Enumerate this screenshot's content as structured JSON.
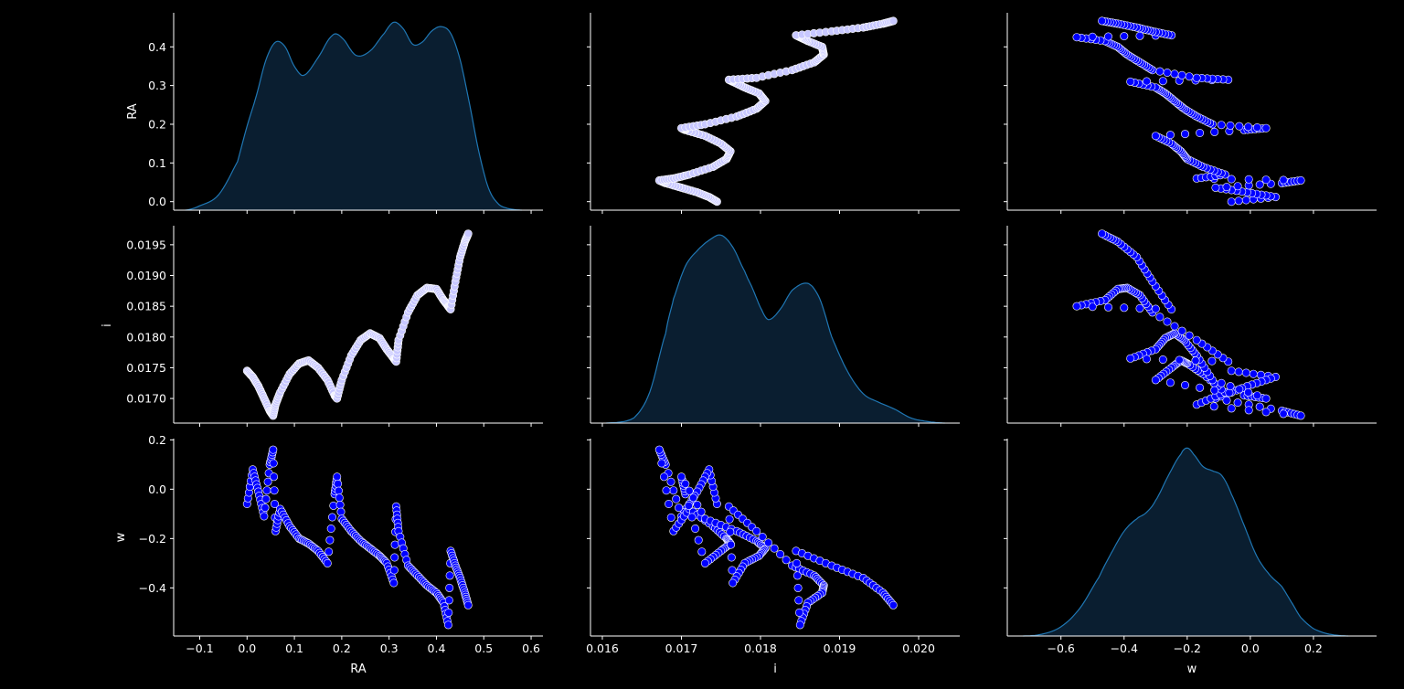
{
  "figure": {
    "background": "#000000",
    "foreground": "#ffffff"
  },
  "chart_data": {
    "type": "pairplot",
    "variables": [
      "RA",
      "i",
      "w"
    ],
    "colors": {
      "kde_line": "#1f77b4",
      "kde_fill": "#0a1e30",
      "scatter_fill": "#0000ff",
      "scatter_fill_dense": "#c8c8ff",
      "scatter_edge": "#ffffff"
    },
    "axes": {
      "RA": {
        "label": "RA",
        "range": [
          -0.155,
          0.625
        ],
        "row_range": [
          -0.022,
          0.488
        ],
        "ticks": [
          -0.1,
          0.0,
          0.1,
          0.2,
          0.3,
          0.4,
          0.5,
          0.6
        ],
        "row_ticks": [
          0.0,
          0.1,
          0.2,
          0.3,
          0.4
        ],
        "tick_labels": [
          "−0.1",
          "0.0",
          "0.1",
          "0.2",
          "0.3",
          "0.4",
          "0.5",
          "0.6"
        ],
        "row_tick_labels": [
          "0.0",
          "0.1",
          "0.2",
          "0.3",
          "0.4"
        ]
      },
      "i": {
        "label": "i",
        "range": [
          0.01585,
          0.02052
        ],
        "row_range": [
          0.0166,
          0.01981
        ],
        "ticks": [
          0.016,
          0.017,
          0.018,
          0.019,
          0.02
        ],
        "row_ticks": [
          0.017,
          0.0175,
          0.018,
          0.0185,
          0.019,
          0.0195
        ],
        "tick_labels": [
          "0.016",
          "0.017",
          "0.018",
          "0.019",
          "0.020"
        ],
        "row_tick_labels": [
          "0.0170",
          "0.0175",
          "0.0180",
          "0.0185",
          "0.0190",
          "0.0195"
        ]
      },
      "w": {
        "label": "w",
        "range": [
          -0.77,
          0.4
        ],
        "row_range": [
          -0.595,
          0.205
        ],
        "ticks": [
          -0.6,
          -0.4,
          -0.2,
          0.0,
          0.2
        ],
        "row_ticks": [
          -0.4,
          -0.2,
          0.0,
          0.2
        ],
        "tick_labels": [
          "−0.6",
          "−0.4",
          "−0.2",
          "0.0",
          "0.2"
        ],
        "row_tick_labels": [
          "−0.4",
          "−0.2",
          "0.0",
          "0.2"
        ]
      }
    },
    "diagonal_kde": {
      "RA": {
        "x": [
          -0.13,
          -0.1,
          -0.06,
          -0.02,
          0.0,
          0.02,
          0.04,
          0.06,
          0.08,
          0.1,
          0.12,
          0.15,
          0.18,
          0.2,
          0.23,
          0.26,
          0.29,
          0.31,
          0.33,
          0.35,
          0.37,
          0.39,
          0.41,
          0.43,
          0.45,
          0.47,
          0.49,
          0.51,
          0.53,
          0.55,
          0.58
        ],
        "density": [
          0.0,
          0.1,
          0.35,
          1.1,
          1.9,
          2.6,
          3.4,
          3.8,
          3.7,
          3.25,
          3.05,
          3.45,
          3.95,
          3.9,
          3.5,
          3.6,
          4.0,
          4.25,
          4.1,
          3.75,
          3.8,
          4.05,
          4.15,
          4.0,
          3.4,
          2.4,
          1.3,
          0.5,
          0.15,
          0.04,
          0.0
        ]
      },
      "i": {
        "x": [
          0.01605,
          0.0164,
          0.0166,
          0.0168,
          0.0169,
          0.01705,
          0.0172,
          0.01735,
          0.0175,
          0.01765,
          0.0178,
          0.0179,
          0.018,
          0.0181,
          0.01825,
          0.0184,
          0.0186,
          0.01875,
          0.0189,
          0.0191,
          0.0193,
          0.0195,
          0.0197,
          0.0199,
          0.0201,
          0.02033
        ],
        "density": [
          0.0,
          0.15,
          0.9,
          2.6,
          3.6,
          4.55,
          5.0,
          5.3,
          5.45,
          5.1,
          4.4,
          3.9,
          3.35,
          3.0,
          3.3,
          3.85,
          4.05,
          3.6,
          2.5,
          1.5,
          0.85,
          0.6,
          0.4,
          0.15,
          0.05,
          0.0
        ]
      },
      "w": {
        "x": [
          -0.72,
          -0.66,
          -0.6,
          -0.54,
          -0.48,
          -0.44,
          -0.4,
          -0.36,
          -0.33,
          -0.3,
          -0.26,
          -0.22,
          -0.2,
          -0.18,
          -0.15,
          -0.12,
          -0.09,
          -0.06,
          -0.02,
          0.02,
          0.06,
          0.1,
          0.13,
          0.16,
          0.2,
          0.25,
          0.31
        ],
        "density": [
          0.0,
          0.03,
          0.15,
          0.45,
          0.95,
          1.35,
          1.7,
          1.9,
          2.0,
          2.2,
          2.6,
          2.95,
          3.05,
          2.95,
          2.75,
          2.68,
          2.6,
          2.3,
          1.8,
          1.3,
          1.0,
          0.8,
          0.55,
          0.3,
          0.12,
          0.03,
          0.0
        ]
      }
    },
    "trajectory": {
      "RA": [
        0.0,
        0.012,
        0.024,
        0.036,
        0.048,
        0.055,
        0.06,
        0.07,
        0.09,
        0.11,
        0.13,
        0.15,
        0.17,
        0.185,
        0.19,
        0.2,
        0.22,
        0.24,
        0.26,
        0.28,
        0.295,
        0.31,
        0.315,
        0.32,
        0.34,
        0.36,
        0.38,
        0.4,
        0.415,
        0.425,
        0.43,
        0.44,
        0.45,
        0.46,
        0.467
      ],
      "i": [
        0.01745,
        0.01735,
        0.0172,
        0.017,
        0.0168,
        0.01672,
        0.0169,
        0.0171,
        0.0174,
        0.01757,
        0.01762,
        0.0175,
        0.0173,
        0.01705,
        0.017,
        0.0173,
        0.0177,
        0.01795,
        0.01806,
        0.01798,
        0.0178,
        0.01765,
        0.0176,
        0.01795,
        0.0184,
        0.01868,
        0.0188,
        0.01878,
        0.0186,
        0.0185,
        0.01845,
        0.0189,
        0.0193,
        0.01955,
        0.01968
      ],
      "w": [
        -0.06,
        0.08,
        -0.01,
        -0.11,
        0.1,
        0.16,
        -0.17,
        -0.08,
        -0.15,
        -0.2,
        -0.22,
        -0.25,
        -0.3,
        -0.02,
        0.05,
        -0.12,
        -0.17,
        -0.21,
        -0.24,
        -0.27,
        -0.3,
        -0.38,
        -0.07,
        -0.17,
        -0.31,
        -0.35,
        -0.39,
        -0.42,
        -0.46,
        -0.55,
        -0.25,
        -0.31,
        -0.36,
        -0.42,
        -0.47
      ]
    }
  }
}
